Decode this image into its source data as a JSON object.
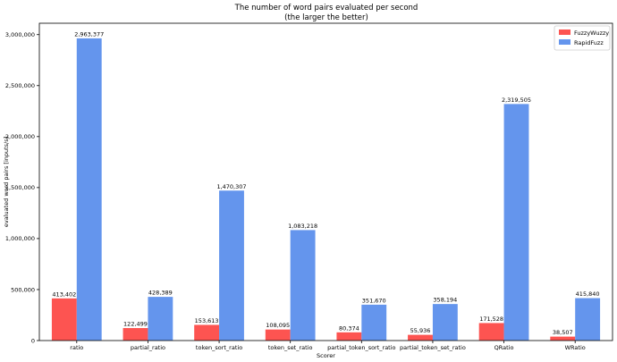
{
  "chart_data": {
    "type": "bar",
    "title": "The number of word pairs evaluated per second",
    "subtitle": "(the larger the better)",
    "xlabel": "Scorer",
    "ylabel": "evaluated word pairs [inputs/s]",
    "categories": [
      "ratio",
      "partial_ratio",
      "token_sort_ratio",
      "token_set_ratio",
      "partial_token_sort_ratio",
      "partial_token_set_ratio",
      "QRatio",
      "WRatio"
    ],
    "series": [
      {
        "name": "FuzzyWuzzy",
        "color": "#fd5451",
        "values": [
          413402,
          122499,
          153613,
          108095,
          80374,
          55936,
          171528,
          38507
        ],
        "labels": [
          "413,402",
          "122,499",
          "153,613",
          "108,095",
          "80,374",
          "55,936",
          "171,528",
          "38,507"
        ]
      },
      {
        "name": "RapidFuzz",
        "color": "#6495ed",
        "values": [
          2963377,
          428389,
          1470307,
          1083218,
          351670,
          358194,
          2319505,
          415840
        ],
        "labels": [
          "2,963,377",
          "428,389",
          "1,470,307",
          "1,083,218",
          "351,670",
          "358,194",
          "2,319,505",
          "415,840"
        ]
      }
    ],
    "ylim": [
      0,
      3111546
    ],
    "yticks": [
      0,
      500000,
      1000000,
      1500000,
      2000000,
      2500000,
      3000000
    ],
    "ytick_labels": [
      "0",
      "500,000",
      "1,000,000",
      "1,500,000",
      "2,000,000",
      "2,500,000",
      "3,000,000"
    ],
    "legend": "top-right",
    "grid": false
  }
}
